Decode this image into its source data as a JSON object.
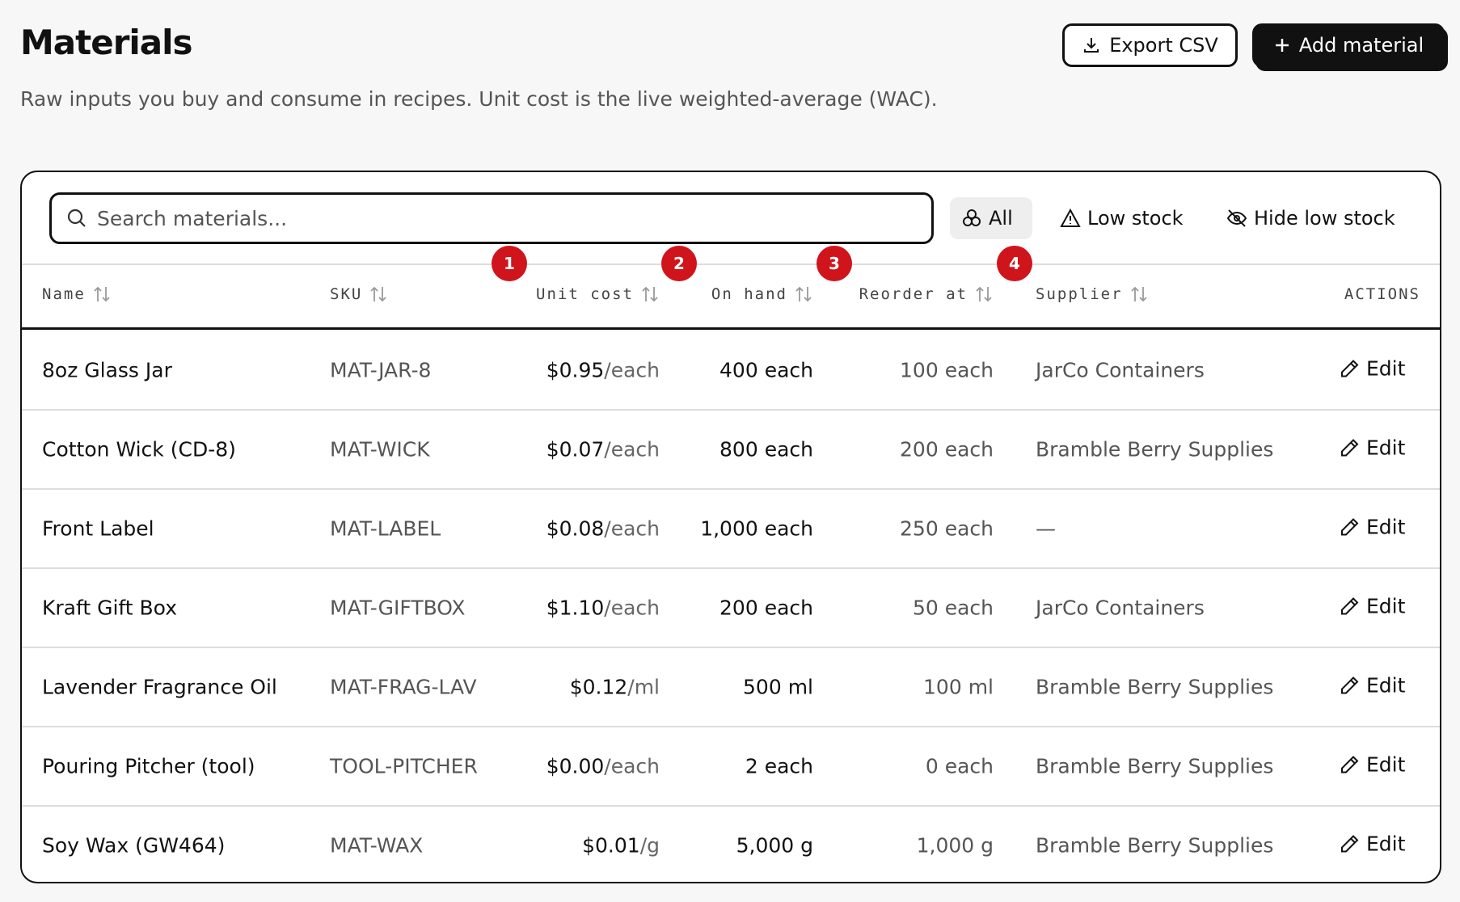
{
  "header": {
    "title": "Materials",
    "subtitle": "Raw inputs you buy and consume in recipes. Unit cost is the live weighted-average (WAC).",
    "buttons": [
      "Export CSV",
      "Add material"
    ]
  },
  "toolbar": {
    "search_placeholder": "Search materials...",
    "filters": [
      "All",
      "Low stock",
      "Hide low stock"
    ]
  },
  "badges": [
    "1",
    "2",
    "3",
    "4"
  ],
  "table": {
    "columns": [
      "Name",
      "SKU",
      "Unit cost",
      "On hand",
      "Reorder at",
      "Supplier",
      "ACTIONS"
    ],
    "rows": [
      {
        "name": "8oz Glass Jar",
        "sku": "MAT-JAR-8",
        "price": "$0.95",
        "unit": "/each",
        "on_hand": "400 each",
        "reorder": "100 each",
        "supplier": "JarCo Containers",
        "action": "Edit"
      },
      {
        "name": "Cotton Wick (CD-8)",
        "sku": "MAT-WICK",
        "price": "$0.07",
        "unit": "/each",
        "on_hand": "800 each",
        "reorder": "200 each",
        "supplier": "Bramble Berry Supplies",
        "action": "Edit"
      },
      {
        "name": "Front Label",
        "sku": "MAT-LABEL",
        "price": "$0.08",
        "unit": "/each",
        "on_hand": "1,000 each",
        "reorder": "250 each",
        "supplier": "—",
        "action": "Edit"
      },
      {
        "name": "Kraft Gift Box",
        "sku": "MAT-GIFTBOX",
        "price": "$1.10",
        "unit": "/each",
        "on_hand": "200 each",
        "reorder": "50 each",
        "supplier": "JarCo Containers",
        "action": "Edit"
      },
      {
        "name": "Lavender Fragrance Oil",
        "sku": "MAT-FRAG-LAV",
        "price": "$0.12",
        "unit": "/ml",
        "on_hand": "500 ml",
        "reorder": "100 ml",
        "supplier": "Bramble Berry Supplies",
        "action": "Edit"
      },
      {
        "name": "Pouring Pitcher (tool)",
        "sku": "TOOL-PITCHER",
        "price": "$0.00",
        "unit": "/each",
        "on_hand": "2 each",
        "reorder": "0 each",
        "supplier": "Bramble Berry Supplies",
        "action": "Edit"
      },
      {
        "name": "Soy Wax (GW464)",
        "sku": "MAT-WAX",
        "price": "$0.01",
        "unit": "/g",
        "on_hand": "5,000 g",
        "reorder": "1,000 g",
        "supplier": "Bramble Berry Supplies",
        "action": "Edit"
      }
    ]
  }
}
